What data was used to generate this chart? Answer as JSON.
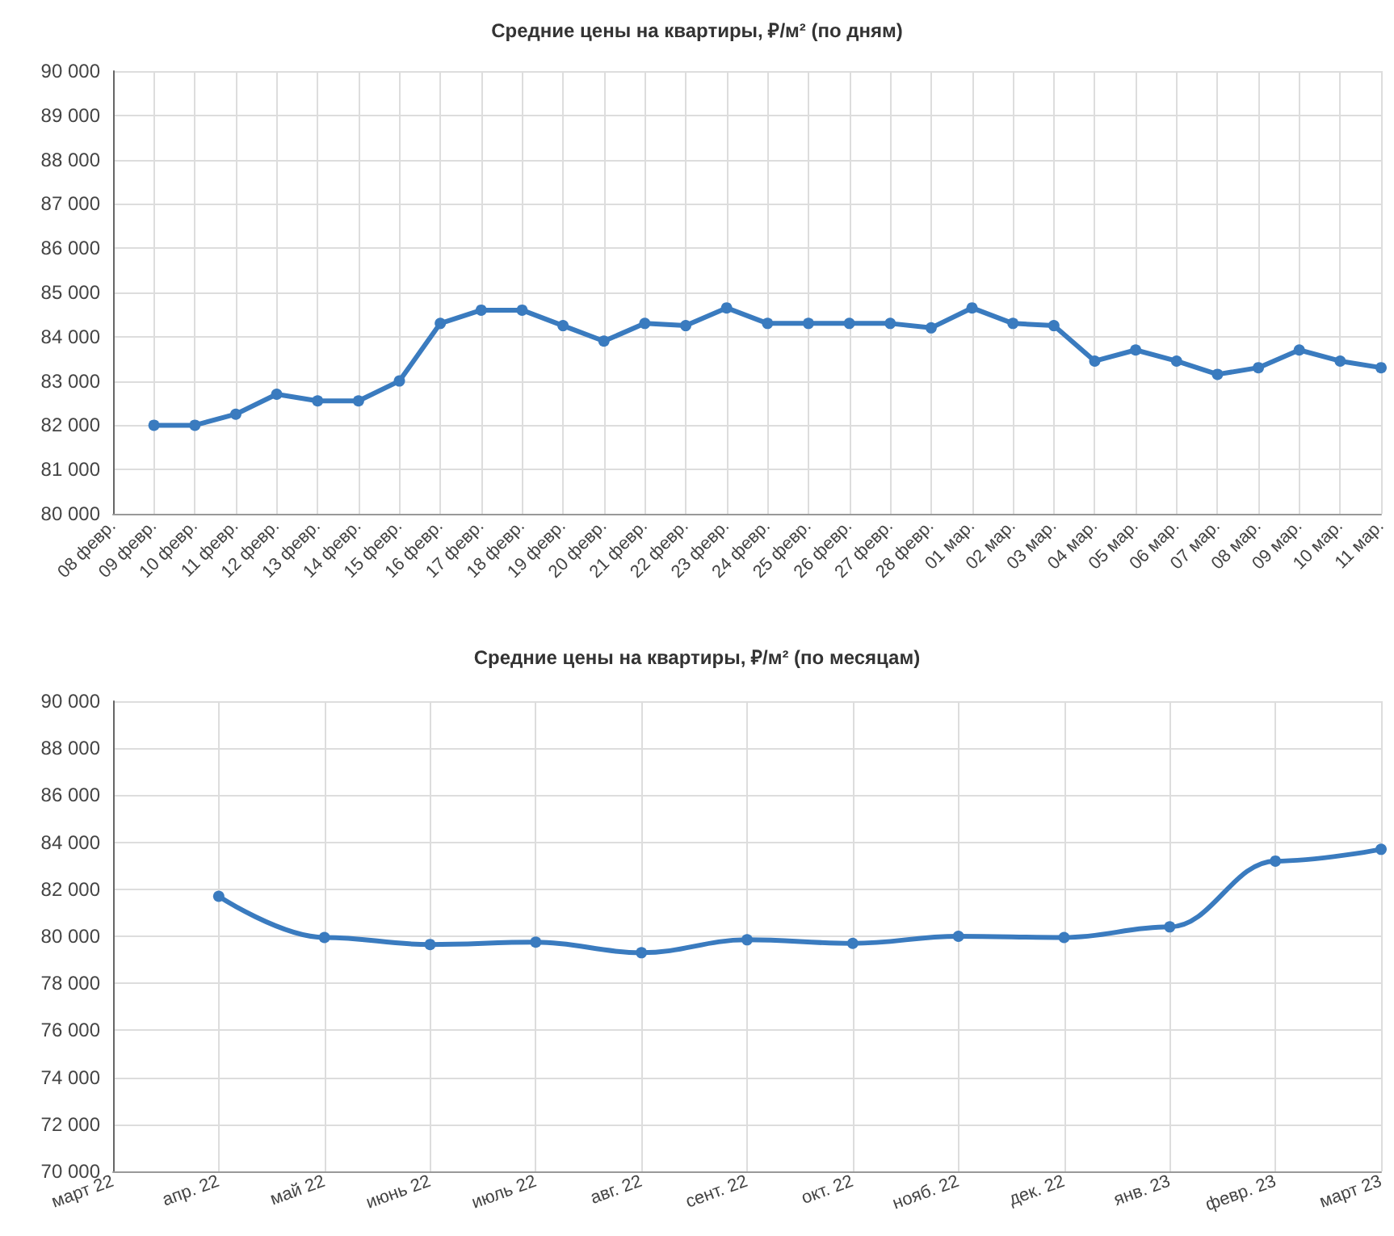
{
  "chart_data": [
    {
      "type": "line",
      "title": "Средние цены на квартиры, ₽/м² (по дням)",
      "categories": [
        "08 февр.",
        "09 февр.",
        "10 февр.",
        "11 февр.",
        "12 февр.",
        "13 февр.",
        "14 февр.",
        "15 февр.",
        "16 февр.",
        "17 февр.",
        "18 февр.",
        "19 февр.",
        "20 февр.",
        "21 февр.",
        "22 февр.",
        "23 февр.",
        "24 февр.",
        "25 февр.",
        "26 февр.",
        "27 февр.",
        "28 февр.",
        "01 мар.",
        "02 мар.",
        "03 мар.",
        "04 мар.",
        "05 мар.",
        "06 мар.",
        "07 мар.",
        "08 мар.",
        "09 мар.",
        "10 мар.",
        "11 мар."
      ],
      "series": [
        {
          "color": "#3a7bbf",
          "values": [
            null,
            82000,
            82000,
            82250,
            82700,
            82550,
            82550,
            83000,
            84300,
            84600,
            84600,
            84250,
            83900,
            84300,
            84250,
            84650,
            84300,
            84300,
            84300,
            84300,
            84200,
            84650,
            84300,
            84250,
            83450,
            83700,
            83450,
            83150,
            83300,
            83700,
            83450,
            83300
          ]
        }
      ],
      "ylim": [
        80000,
        90000
      ],
      "yticks": [
        {
          "value": 80000,
          "label": "80 000"
        },
        {
          "value": 81000,
          "label": "81 000"
        },
        {
          "value": 82000,
          "label": "82 000"
        },
        {
          "value": 83000,
          "label": "83 000"
        },
        {
          "value": 84000,
          "label": "84 000"
        },
        {
          "value": 85000,
          "label": "85 000"
        },
        {
          "value": 86000,
          "label": "86 000"
        },
        {
          "value": 87000,
          "label": "87 000"
        },
        {
          "value": 88000,
          "label": "88 000"
        },
        {
          "value": 89000,
          "label": "89 000"
        },
        {
          "value": 90000,
          "label": "90 000"
        }
      ],
      "grid": true,
      "marker": "circle",
      "line_style": "solid"
    },
    {
      "type": "line",
      "title": "Средние цены на квартиры, ₽/м² (по месяцам)",
      "categories": [
        "март 22",
        "апр. 22",
        "май 22",
        "июнь 22",
        "июль 22",
        "авг. 22",
        "сент. 22",
        "окт. 22",
        "нояб. 22",
        "дек. 22",
        "янв. 23",
        "февр. 23",
        "март 23"
      ],
      "series": [
        {
          "color": "#3a7bbf",
          "values": [
            null,
            81700,
            79950,
            79650,
            79750,
            79300,
            79850,
            79700,
            80000,
            79950,
            80400,
            83200,
            83700
          ]
        }
      ],
      "ylim": [
        70000,
        90000
      ],
      "yticks": [
        {
          "value": 70000,
          "label": "70 000"
        },
        {
          "value": 72000,
          "label": "72 000"
        },
        {
          "value": 74000,
          "label": "74 000"
        },
        {
          "value": 76000,
          "label": "76 000"
        },
        {
          "value": 78000,
          "label": "78 000"
        },
        {
          "value": 80000,
          "label": "80 000"
        },
        {
          "value": 82000,
          "label": "82 000"
        },
        {
          "value": 84000,
          "label": "84 000"
        },
        {
          "value": 86000,
          "label": "86 000"
        },
        {
          "value": 88000,
          "label": "88 000"
        },
        {
          "value": 90000,
          "label": "90 000"
        }
      ],
      "grid": true,
      "marker": "circle",
      "line_style": "solid"
    }
  ]
}
